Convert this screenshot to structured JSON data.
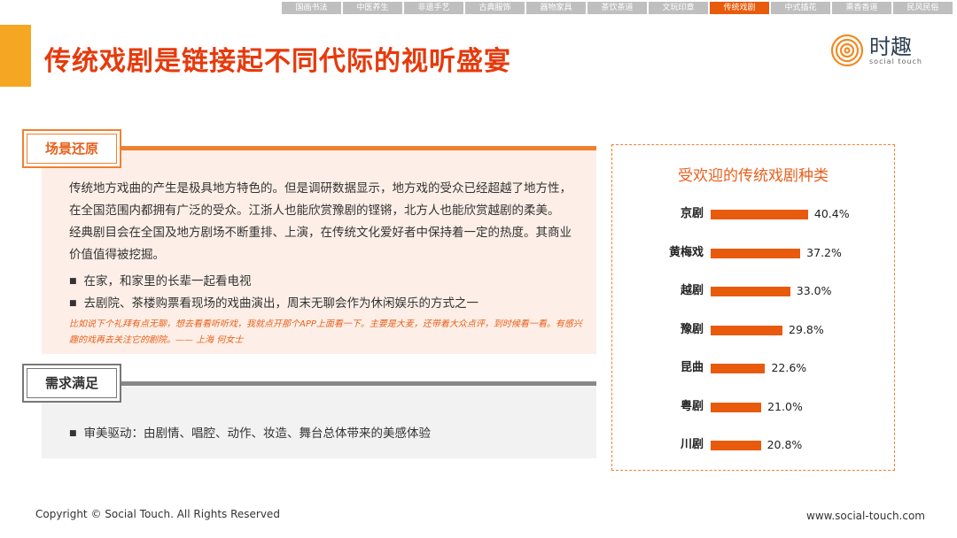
{
  "nav": {
    "tabs": [
      "国画书法",
      "中医养生",
      "非遗手艺",
      "古典服饰",
      "器物家具",
      "茶饮茶道",
      "文玩印章",
      "传统戏剧",
      "中式插花",
      "熏香香道",
      "民风民俗"
    ],
    "active": 7
  },
  "title": "传统戏剧是链接起不同代际的视听盛宴",
  "logo": {
    "name": "时趣",
    "sub": "social touch"
  },
  "section1": {
    "header": "场景还原",
    "paragraph": [
      "传统地方戏曲的产生是极具地方特色的。但是调研数据显示，地方戏的受众已经超越了地方性，",
      "在全国范围内都拥有广泛的受众。江浙人也能欣赏豫剧的铿锵，北方人也能欣赏越剧的柔美。",
      "经典剧目会在全国及地方剧场不断重排、上演，在传统文化爱好者中保持着一定的热度。其商业",
      "价值值得被挖掘。"
    ],
    "bullets": [
      "在家，和家里的长辈一起看电视",
      "去剧院、茶楼购票看现场的戏曲演出，周末无聊会作为休闲娱乐的方式之一"
    ],
    "quote": "比如说下个礼拜有点无聊，想去看看听听戏，我就点开那个APP上面看一下。主要是大麦，还带着大众点评，到时候看一看。有感兴趣的戏再去关注它的剧院。—— 上海 何女士"
  },
  "section2": {
    "header": "需求满足",
    "bullets": [
      "审美驱动：由剧情、唱腔、动作、妆造、舞台总体带来的美感体验"
    ]
  },
  "chart_data": {
    "type": "bar",
    "orientation": "horizontal",
    "title": "受欢迎的传统戏剧种类",
    "categories": [
      "京剧",
      "黄梅戏",
      "越剧",
      "豫剧",
      "昆曲",
      "粤剧",
      "川剧"
    ],
    "values": [
      40.4,
      37.2,
      33.0,
      29.8,
      22.6,
      21.0,
      20.8
    ],
    "labels": [
      "40.4%",
      "37.2%",
      "33.0%",
      "29.8%",
      "22.6%",
      "21.0%",
      "20.8%"
    ],
    "color": "#e85a0c"
  },
  "footer": {
    "copyright": "Copyright © Social Touch. All Rights Reserved",
    "url": "www.social-touch.com"
  },
  "colors": {
    "accent": "#e85a0c",
    "title": "#e63a0c"
  }
}
